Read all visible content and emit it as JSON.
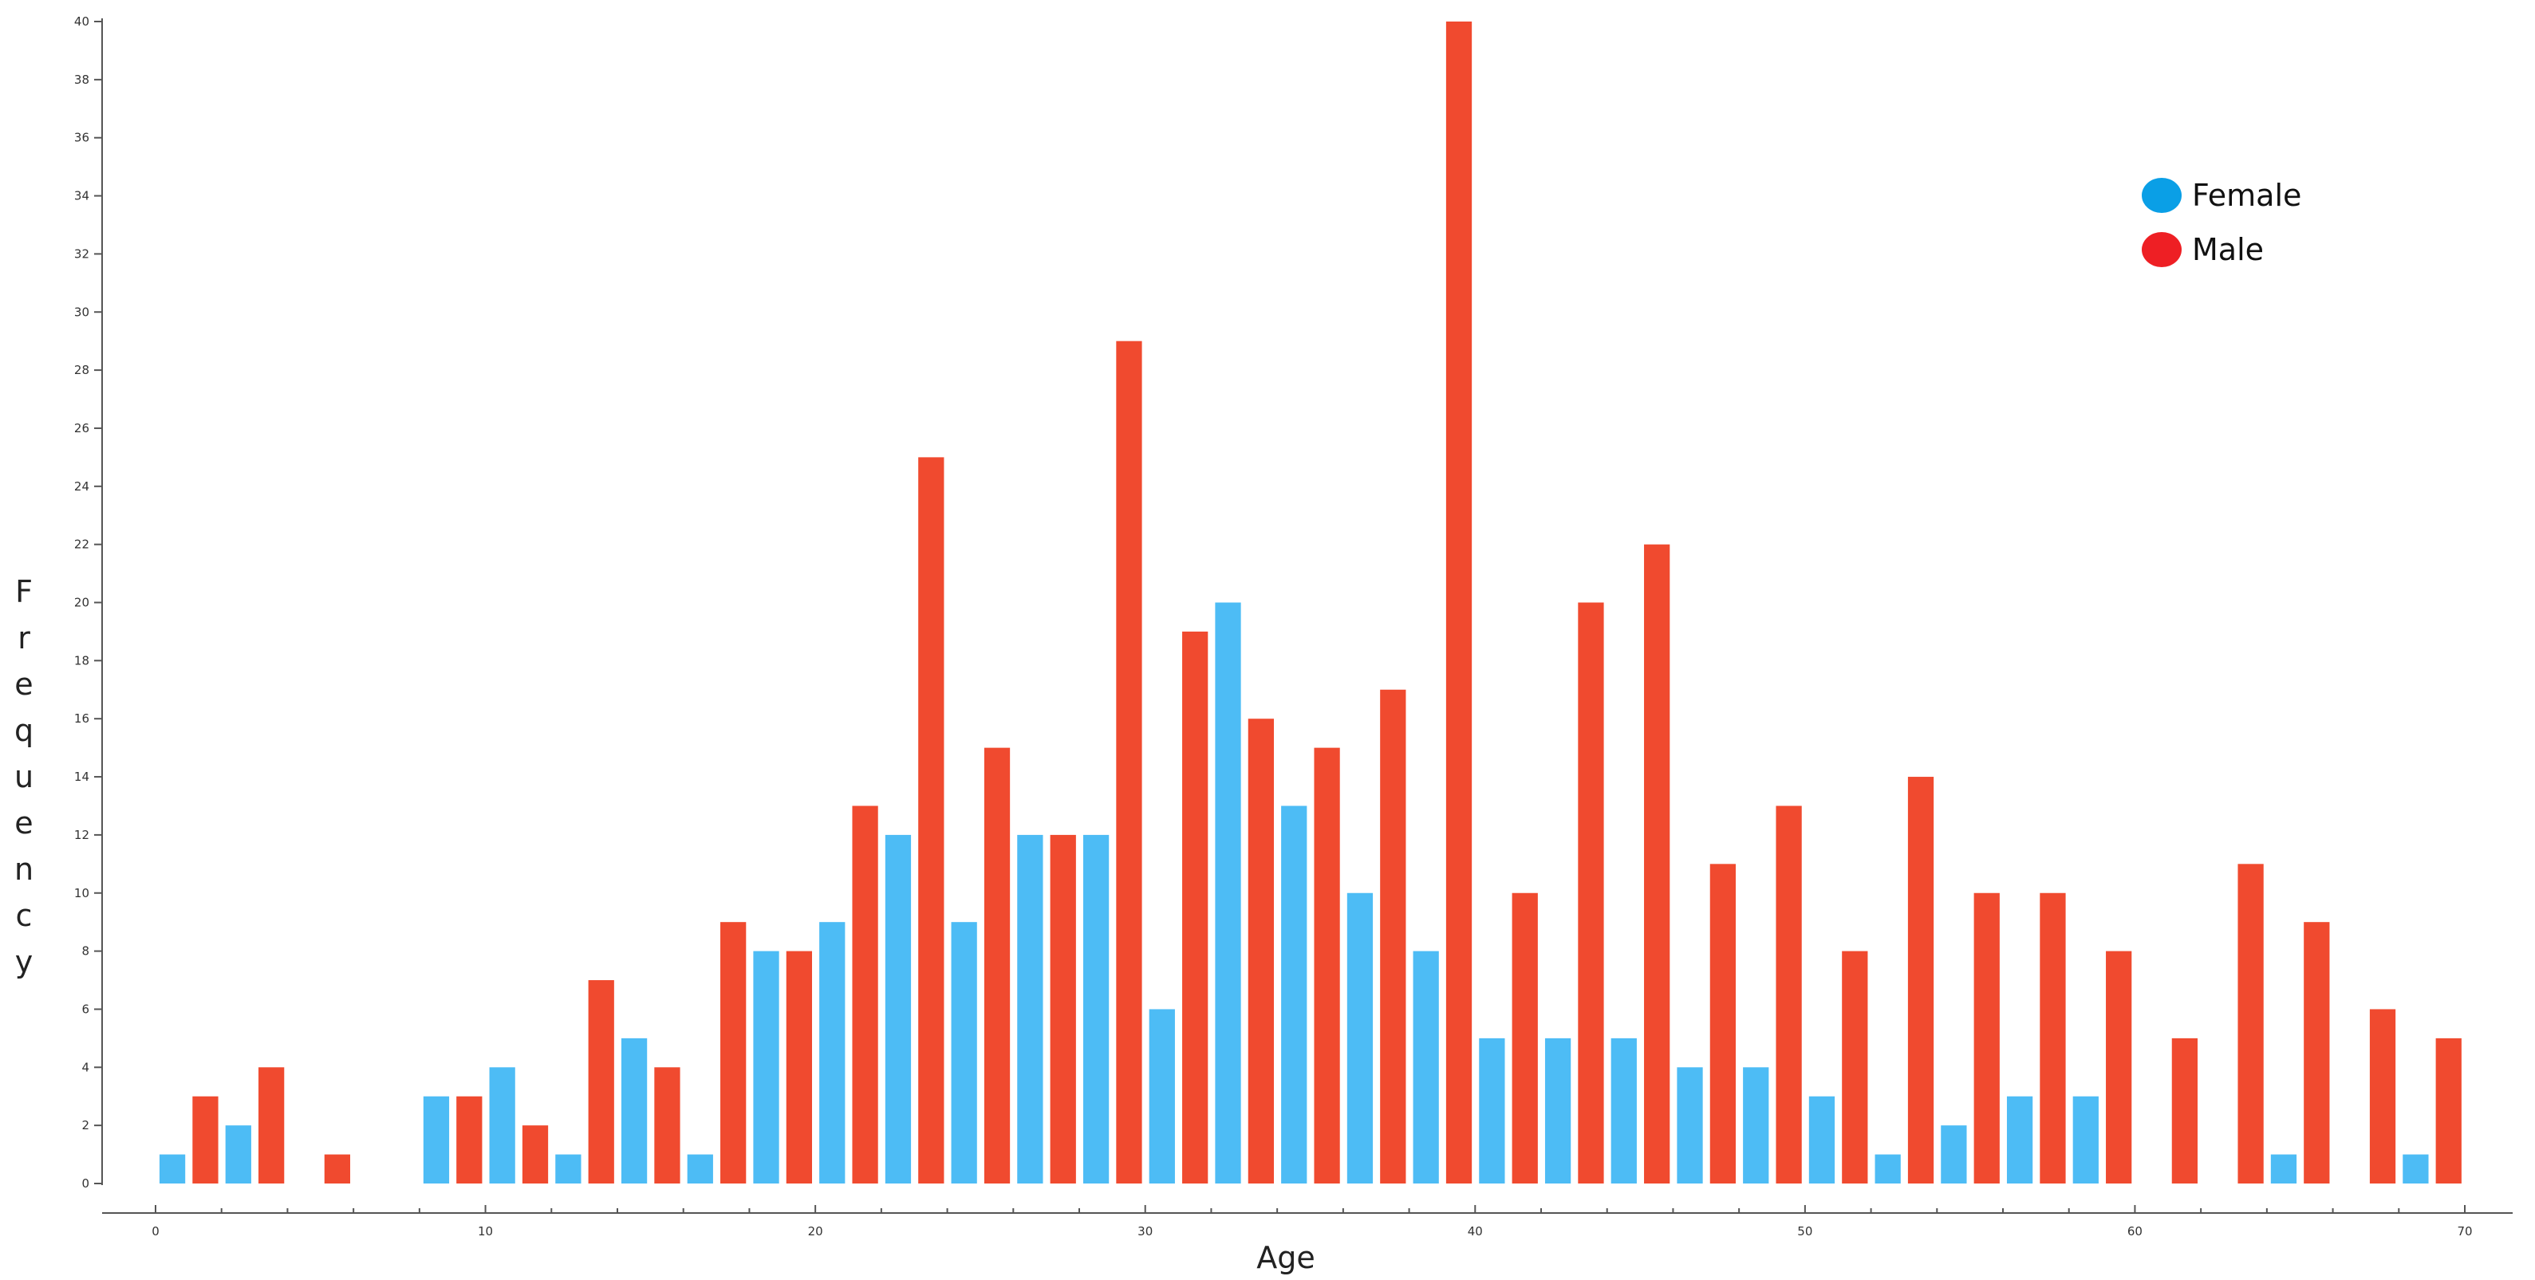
{
  "chart_data": {
    "type": "bar",
    "xlabel": "Age",
    "ylabel": "Frequency",
    "xlim": [
      0,
      70
    ],
    "ylim": [
      0,
      40
    ],
    "x_ticks": [
      0,
      10,
      20,
      30,
      40,
      50,
      60,
      70
    ],
    "y_ticks": [
      0,
      2,
      4,
      6,
      8,
      10,
      12,
      14,
      16,
      18,
      20,
      22,
      24,
      26,
      28,
      30,
      32,
      34,
      36,
      38,
      40
    ],
    "grid": false,
    "legend_position": "top-right",
    "bin_width": 2,
    "bin_starts": [
      0,
      2,
      4,
      6,
      8,
      10,
      12,
      14,
      16,
      18,
      20,
      22,
      24,
      26,
      28,
      30,
      32,
      34,
      36,
      38,
      40,
      42,
      44,
      46,
      48,
      50,
      52,
      54,
      56,
      58,
      60,
      62,
      64,
      66,
      68
    ],
    "series": [
      {
        "name": "Female",
        "color": "#4dbcf5",
        "legend_color": "#0a9fe6",
        "values": [
          1,
          2,
          0,
          0,
          3,
          4,
          1,
          5,
          1,
          8,
          9,
          12,
          9,
          12,
          12,
          6,
          20,
          13,
          10,
          8,
          5,
          5,
          5,
          4,
          4,
          3,
          1,
          2,
          3,
          3,
          0,
          0,
          1,
          0,
          1
        ]
      },
      {
        "name": "Male",
        "color": "#f04a2f",
        "legend_color": "#ee1f24",
        "values": [
          3,
          4,
          1,
          0,
          3,
          2,
          7,
          4,
          9,
          8,
          13,
          25,
          15,
          12,
          29,
          19,
          16,
          15,
          17,
          40,
          10,
          20,
          22,
          11,
          13,
          8,
          14,
          10,
          10,
          8,
          5,
          11,
          9,
          6,
          5
        ]
      }
    ]
  }
}
